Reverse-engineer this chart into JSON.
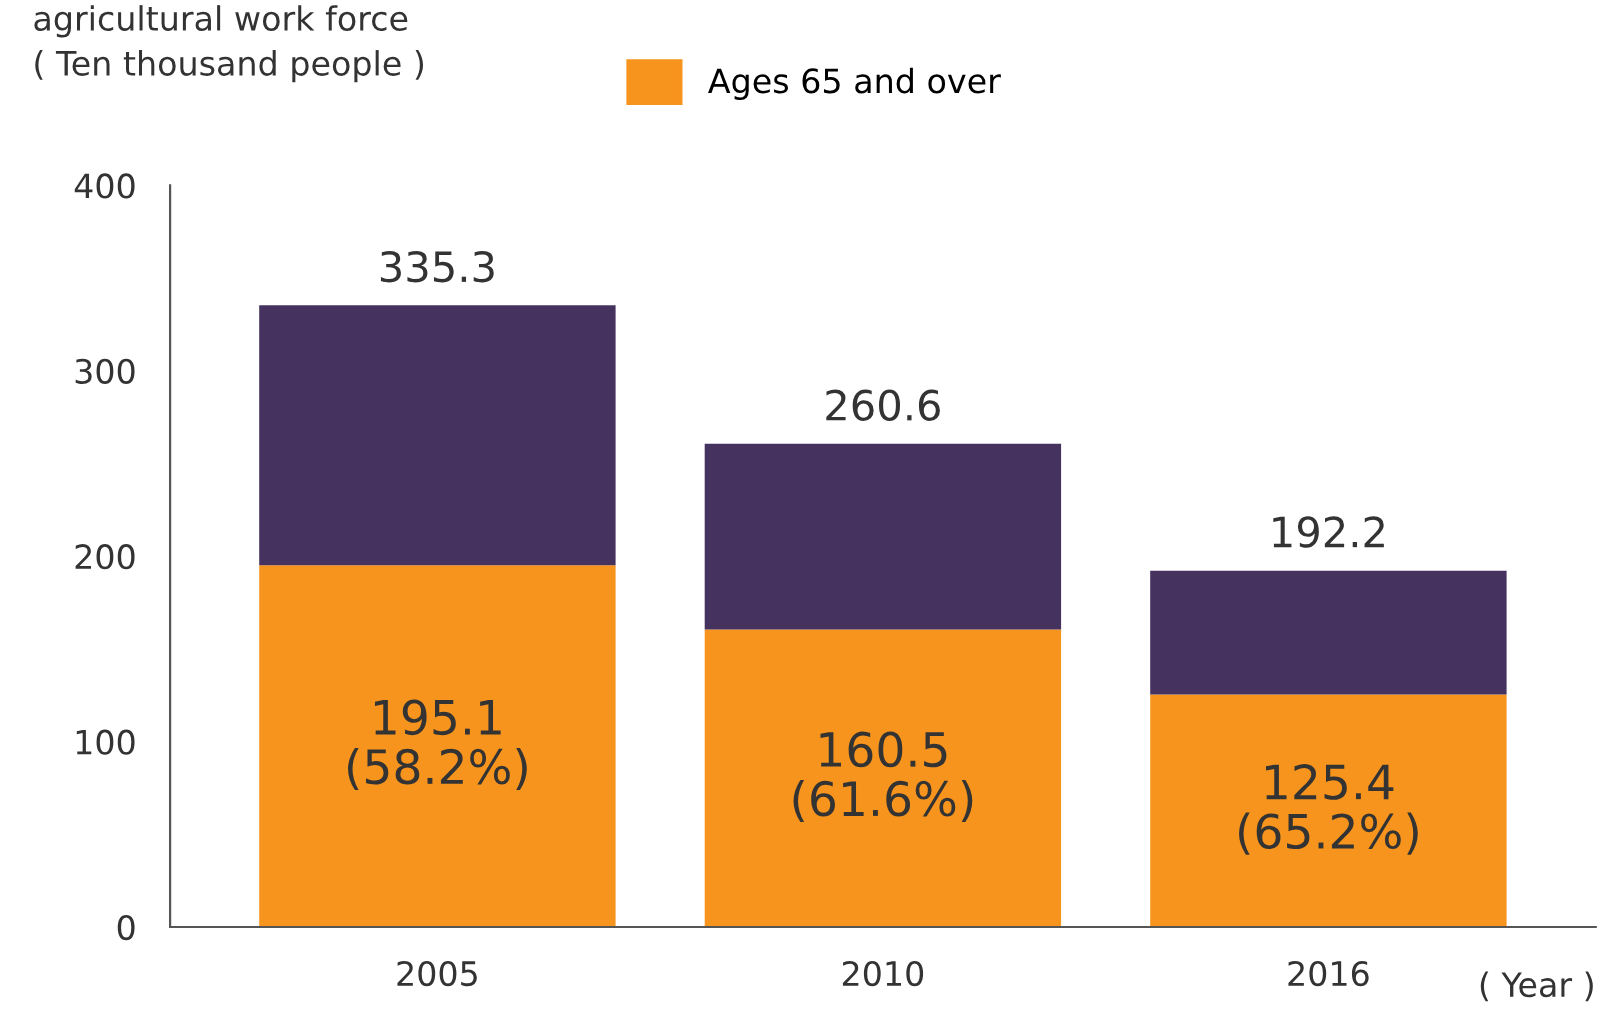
{
  "chart_data": {
    "type": "bar",
    "stacked": true,
    "ylabel": "agricultural work force\n( Ten thousand people )",
    "xlabel": "( Year )",
    "categories": [
      "2005",
      "2010",
      "2016"
    ],
    "series": [
      {
        "name": "Ages 65 and over",
        "color": "#f7941d",
        "values": [
          195.1,
          160.5,
          125.4
        ],
        "value_labels": [
          "195.1\n(58.2%)",
          "160.5\n(61.6%)",
          "125.4\n(65.2%)"
        ]
      },
      {
        "color": "#45325e",
        "values": [
          140.2,
          100.1,
          66.8
        ]
      }
    ],
    "totals": [
      "335.3",
      "260.6",
      "192.2"
    ],
    "ylim": [
      0,
      400
    ],
    "yticks": [
      0,
      100,
      200,
      300,
      400
    ],
    "grid": false,
    "legend": "top"
  }
}
